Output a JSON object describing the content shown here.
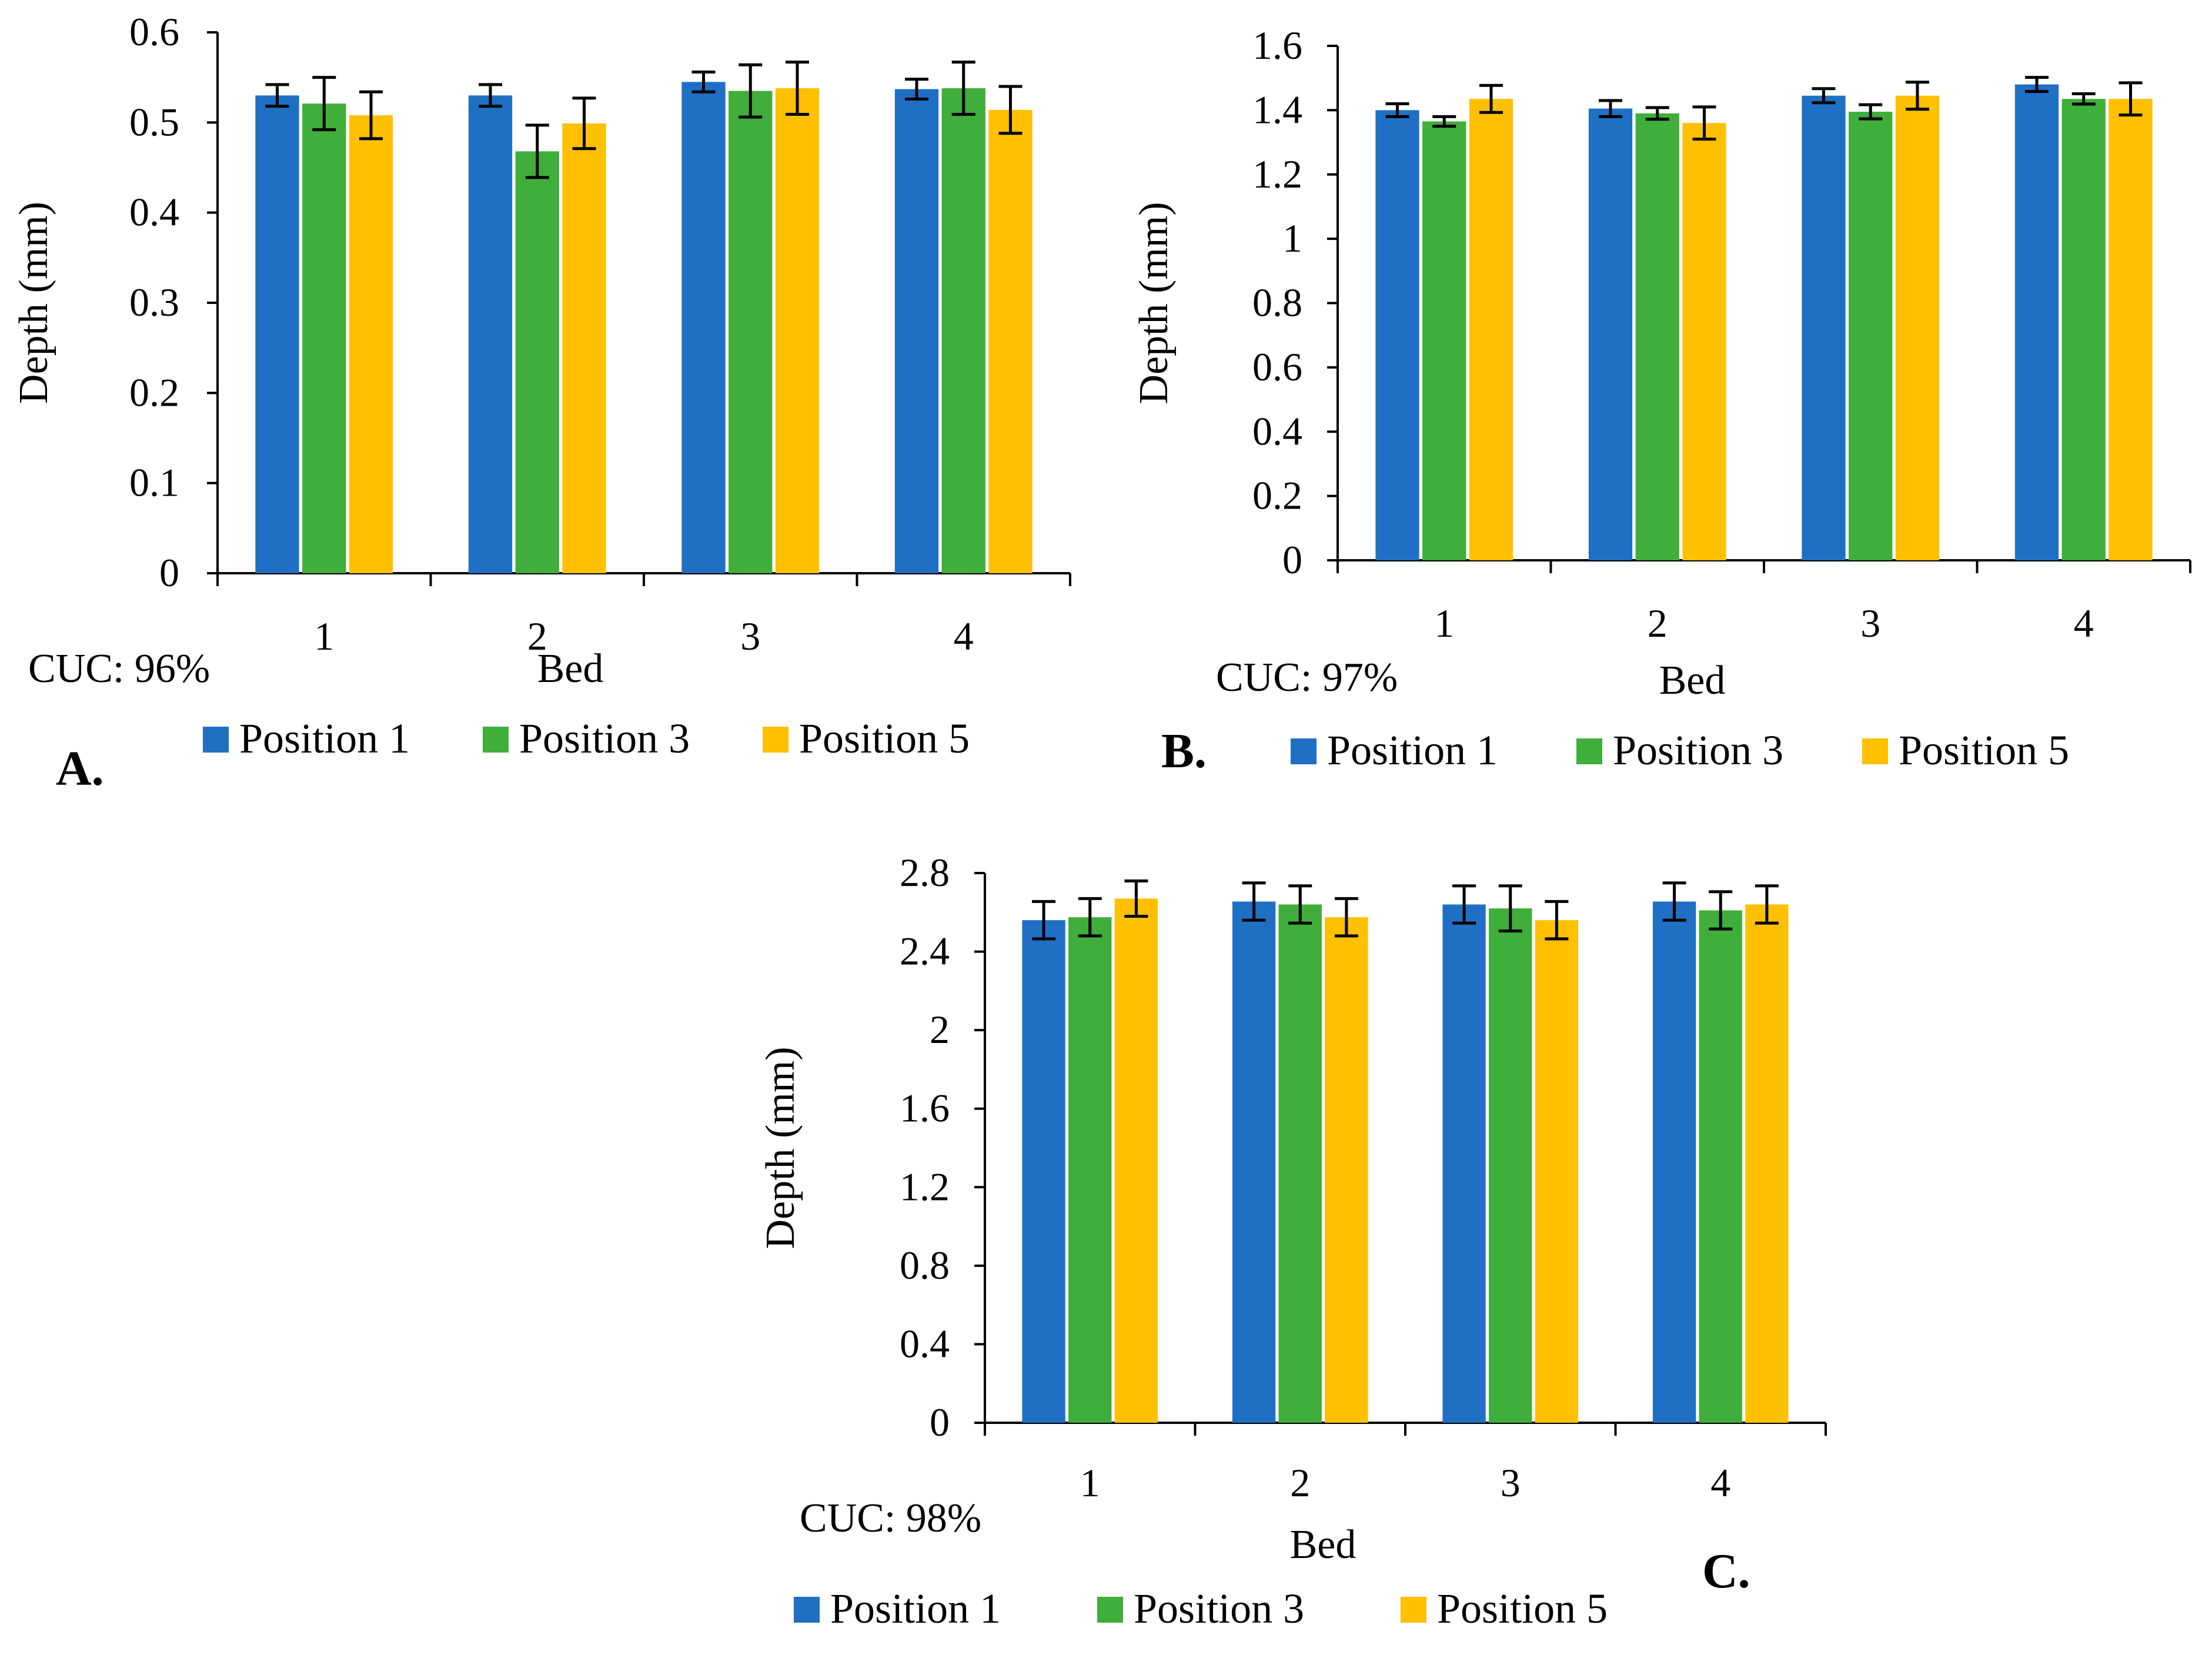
{
  "chart_data": [
    {
      "type": "bar",
      "panel_label": "A.",
      "cuc_label": "CUC: 96%",
      "xlabel": "Bed",
      "ylabel": "Depth (mm)",
      "ylim": [
        0,
        0.6
      ],
      "yticks": [
        "0",
        "0.1",
        "0.2",
        "0.3",
        "0.4",
        "0.5",
        "0.6"
      ],
      "categories": [
        "1",
        "2",
        "3",
        "4"
      ],
      "series": [
        {
          "name": "Position 1",
          "color": "#1f6fc5",
          "values": [
            0.53,
            0.53,
            0.545,
            0.537
          ],
          "errors": [
            0.012,
            0.012,
            0.011,
            0.011
          ]
        },
        {
          "name": "Position 3",
          "color": "#3fae3a",
          "values": [
            0.521,
            0.468,
            0.535,
            0.538
          ],
          "errors": [
            0.029,
            0.029,
            0.029,
            0.029
          ]
        },
        {
          "name": "Position 5",
          "color": "#ffc000",
          "values": [
            0.508,
            0.499,
            0.538,
            0.514
          ],
          "errors": [
            0.026,
            0.028,
            0.029,
            0.026
          ]
        }
      ],
      "legend": [
        "Position 1",
        "Position 3",
        "Position 5"
      ]
    },
    {
      "type": "bar",
      "panel_label": "B.",
      "cuc_label": "CUC: 97%",
      "xlabel": "Bed",
      "ylabel": "Depth (mm)",
      "ylim": [
        0,
        1.6
      ],
      "yticks": [
        "0",
        "0.2",
        "0.4",
        "0.6",
        "0.8",
        "1",
        "1.2",
        "1.4",
        "1.6"
      ],
      "categories": [
        "1",
        "2",
        "3",
        "4"
      ],
      "series": [
        {
          "name": "Position 1",
          "color": "#1f6fc5",
          "values": [
            1.4,
            1.405,
            1.445,
            1.48
          ],
          "errors": [
            0.02,
            0.025,
            0.022,
            0.022
          ]
        },
        {
          "name": "Position 3",
          "color": "#3fae3a",
          "values": [
            1.365,
            1.39,
            1.395,
            1.435
          ],
          "errors": [
            0.015,
            0.018,
            0.022,
            0.016
          ]
        },
        {
          "name": "Position 5",
          "color": "#ffc000",
          "values": [
            1.435,
            1.36,
            1.445,
            1.435
          ],
          "errors": [
            0.042,
            0.05,
            0.042,
            0.05
          ]
        }
      ],
      "legend": [
        "Position 1",
        "Position 3",
        "Position 5"
      ]
    },
    {
      "type": "bar",
      "panel_label": "C.",
      "cuc_label": "CUC: 98%",
      "xlabel": "Bed",
      "ylabel": "Depth (mm)",
      "ylim": [
        0,
        2.8
      ],
      "yticks": [
        "0",
        "0.4",
        "0.8",
        "1.2",
        "1.6",
        "2",
        "2.4",
        "2.8"
      ],
      "categories": [
        "1",
        "2",
        "3",
        "4"
      ],
      "series": [
        {
          "name": "Position 1",
          "color": "#1f6fc5",
          "values": [
            2.56,
            2.655,
            2.64,
            2.655
          ],
          "errors": [
            0.095,
            0.095,
            0.095,
            0.095
          ]
        },
        {
          "name": "Position 3",
          "color": "#3fae3a",
          "values": [
            2.575,
            2.64,
            2.62,
            2.61
          ],
          "errors": [
            0.095,
            0.095,
            0.115,
            0.095
          ]
        },
        {
          "name": "Position 5",
          "color": "#ffc000",
          "values": [
            2.67,
            2.575,
            2.56,
            2.64
          ],
          "errors": [
            0.09,
            0.095,
            0.095,
            0.095
          ]
        }
      ],
      "legend": [
        "Position 1",
        "Position 3",
        "Position 5"
      ]
    }
  ]
}
